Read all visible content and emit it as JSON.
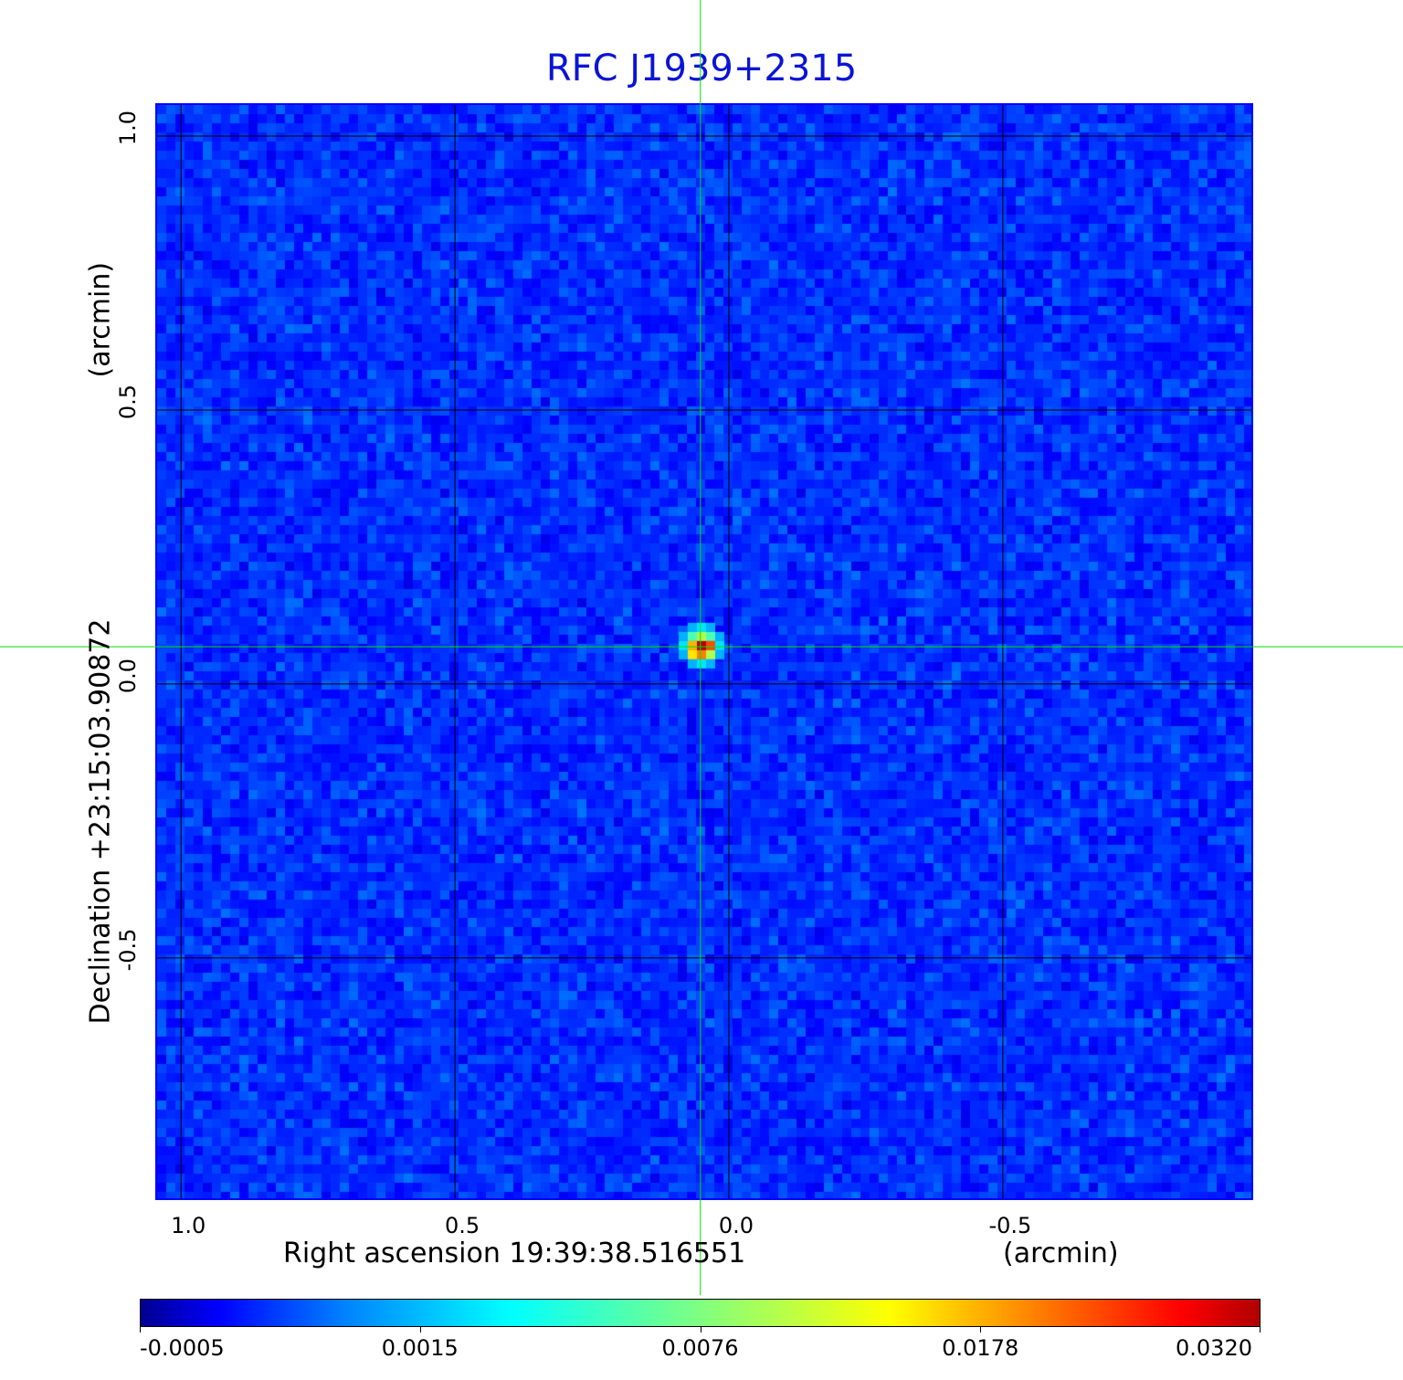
{
  "chart_data": {
    "type": "heatmap",
    "title": "RFC J1939+2315",
    "xlabel": "Right ascension  19:39:38.516551",
    "xunit": "(arcmin)",
    "ylabel": "Declination  +23:15:03.90872",
    "yunit": "(arcmin)",
    "xlim": [
      1.047,
      -0.957
    ],
    "ylim": [
      -0.942,
      1.06
    ],
    "xticks": [
      "1.0",
      "0.5",
      "0.0",
      "-0.5"
    ],
    "xtick_values": [
      1.0,
      0.5,
      0.0,
      -0.5
    ],
    "yticks": [
      "1.0",
      "0.5",
      "0.0",
      "-0.5"
    ],
    "ytick_values": [
      1.0,
      0.5,
      0.0,
      -0.5
    ],
    "grid": true,
    "grid_color": "#000000",
    "crosshair": {
      "x": 0.052,
      "y": 0.068,
      "color": "#00e000"
    },
    "source_peak": {
      "x": 0.05,
      "y": 0.07,
      "value": 0.032
    },
    "background_level": [
      -0.0005,
      0.0015
    ],
    "colormap": "jet",
    "colorbar": {
      "ticks": [
        "-0.0005",
        "0.0015",
        "0.0076",
        "0.0178",
        "0.0320"
      ],
      "position": "bottom"
    },
    "frame_color": "#0000ff",
    "title_color": "#0a14d6"
  }
}
